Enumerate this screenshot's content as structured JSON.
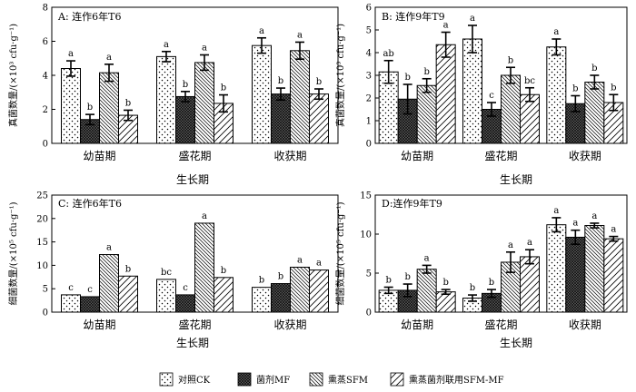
{
  "chart_data": [
    {
      "type": "bar",
      "panel_label": "A: 连作6年T6",
      "ylabel": "真菌数量/(×10³ cfu·g⁻¹)",
      "xlabel": "",
      "ylim": [
        0,
        8
      ],
      "yticks": [
        0,
        2,
        4,
        6,
        8
      ],
      "categories": [
        "幼苗期",
        "盛花期",
        "收获期"
      ],
      "error_bars": true,
      "series": [
        {
          "name": "对照CK",
          "values": [
            4.4,
            5.1,
            5.75
          ],
          "errors": [
            0.45,
            0.3,
            0.45
          ],
          "labels": [
            "a",
            "a",
            "a"
          ]
        },
        {
          "name": "菌剂MF",
          "values": [
            1.4,
            2.75,
            2.9
          ],
          "errors": [
            0.3,
            0.3,
            0.35
          ],
          "labels": [
            "b",
            "b",
            "b"
          ]
        },
        {
          "name": "熏蒸SFM",
          "values": [
            4.15,
            4.75,
            5.45
          ],
          "errors": [
            0.5,
            0.45,
            0.5
          ],
          "labels": [
            "a",
            "a",
            "a"
          ]
        },
        {
          "name": "熏蒸菌剂联用SFM-MF",
          "values": [
            1.65,
            2.35,
            2.9
          ],
          "errors": [
            0.3,
            0.5,
            0.3
          ],
          "labels": [
            "b",
            "b",
            "b"
          ]
        }
      ]
    },
    {
      "type": "bar",
      "panel_label": "B: 连作9年T9",
      "ylabel": "真菌数量/(×10³ cfu·g⁻¹)",
      "xlabel": "",
      "ylim": [
        0,
        6
      ],
      "yticks": [
        0,
        1,
        2,
        3,
        4,
        5,
        6
      ],
      "categories": [
        "幼苗期",
        "盛花期",
        "收获期"
      ],
      "error_bars": true,
      "series": [
        {
          "name": "对照CK",
          "values": [
            3.15,
            4.6,
            4.25
          ],
          "errors": [
            0.5,
            0.6,
            0.35
          ],
          "labels": [
            "ab",
            "a",
            "a"
          ]
        },
        {
          "name": "菌剂MF",
          "values": [
            1.95,
            1.5,
            1.75
          ],
          "errors": [
            0.65,
            0.3,
            0.35
          ],
          "labels": [
            "b",
            "c",
            "b"
          ]
        },
        {
          "name": "熏蒸SFM",
          "values": [
            2.55,
            3.0,
            2.7
          ],
          "errors": [
            0.3,
            0.35,
            0.3
          ],
          "labels": [
            "b",
            "b",
            "b"
          ]
        },
        {
          "name": "熏蒸菌剂联用SFM-MF",
          "values": [
            4.35,
            2.15,
            1.8
          ],
          "errors": [
            0.55,
            0.3,
            0.35
          ],
          "labels": [
            "a",
            "bc",
            "b"
          ]
        }
      ]
    },
    {
      "type": "bar",
      "panel_label": "C: 连作6年T6",
      "ylabel": "细菌数量/(×10⁵ cfu·g⁻¹)",
      "xlabel": "生长期",
      "ylim": [
        0,
        25
      ],
      "yticks": [
        0,
        5,
        10,
        15,
        20,
        25
      ],
      "categories": [
        "幼苗期",
        "盛花期",
        "收获期"
      ],
      "error_bars": false,
      "series": [
        {
          "name": "对照CK",
          "values": [
            3.7,
            7.0,
            5.3
          ],
          "labels": [
            "c",
            "bc",
            "b"
          ]
        },
        {
          "name": "菌剂MF",
          "values": [
            3.3,
            3.7,
            6.1
          ],
          "labels": [
            "c",
            "c",
            "b"
          ]
        },
        {
          "name": "熏蒸SFM",
          "values": [
            12.3,
            19.0,
            9.6
          ],
          "labels": [
            "a",
            "a",
            "a"
          ]
        },
        {
          "name": "熏蒸菌剂联用SFM-MF",
          "values": [
            7.7,
            7.4,
            9.0
          ],
          "labels": [
            "b",
            "b",
            "a"
          ]
        }
      ]
    },
    {
      "type": "bar",
      "panel_label": "D:连作9年T9",
      "ylabel": "细菌数量/(×10⁵ cfu·g⁻¹)",
      "xlabel": "生长期",
      "ylim": [
        0,
        15
      ],
      "yticks": [
        0,
        5,
        10,
        15
      ],
      "categories": [
        "幼苗期",
        "盛花期",
        "收获期"
      ],
      "error_bars": true,
      "series": [
        {
          "name": "对照CK",
          "values": [
            2.8,
            1.8,
            11.2
          ],
          "errors": [
            0.4,
            0.4,
            0.9
          ],
          "labels": [
            "b",
            "b",
            "a"
          ]
        },
        {
          "name": "菌剂MF",
          "values": [
            2.8,
            2.4,
            9.6
          ],
          "errors": [
            0.8,
            0.5,
            0.9
          ],
          "labels": [
            "b",
            "b",
            "a"
          ]
        },
        {
          "name": "熏蒸SFM",
          "values": [
            5.5,
            6.4,
            11.1
          ],
          "errors": [
            0.5,
            1.3,
            0.3
          ],
          "labels": [
            "a",
            "a",
            "a"
          ]
        },
        {
          "name": "熏蒸菌剂联用SFM-MF",
          "values": [
            2.6,
            7.1,
            9.4
          ],
          "errors": [
            0.3,
            0.9,
            0.3
          ],
          "labels": [
            "b",
            "a",
            "a"
          ]
        }
      ]
    }
  ],
  "legend": {
    "placement": "bottom",
    "items": [
      {
        "label": "对照CK",
        "pattern": "dots"
      },
      {
        "label": "菌剂MF",
        "pattern": "crosshatch"
      },
      {
        "label": "熏蒸SFM",
        "pattern": "diag-fine"
      },
      {
        "label": "熏蒸菌剂联用SFM-MF",
        "pattern": "diag-wide"
      }
    ]
  },
  "x_axis_title": "生长期"
}
